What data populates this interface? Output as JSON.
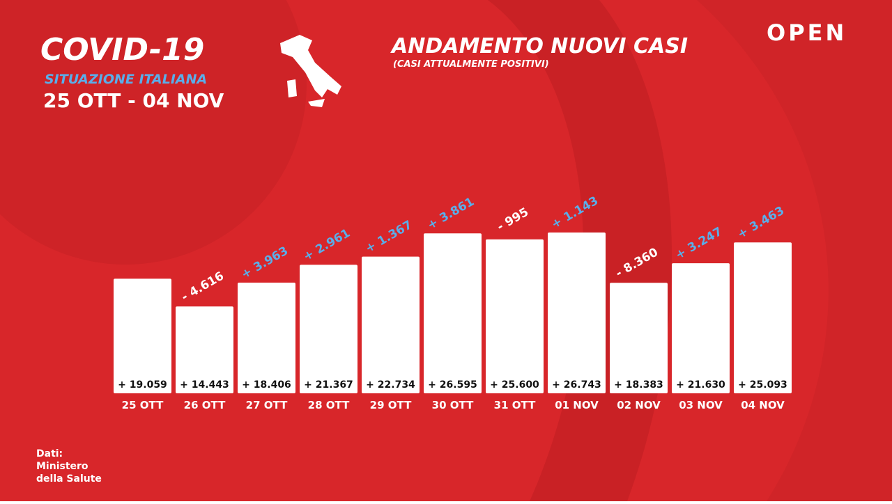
{
  "header": {
    "title": "COVID-19",
    "subtitle": "SITUAZIONE ITALIANA",
    "period": "25 OTT - 04 NOV",
    "brand": "OPEN"
  },
  "source": [
    "Dati:",
    "Ministero",
    "della Salute"
  ],
  "chart_data": {
    "type": "bar",
    "title": "ANDAMENTO NUOVI CASI",
    "subtitle": "(CASI ATTUALMENTE POSITIVI)",
    "categories": [
      "25 OTT",
      "26 OTT",
      "27 OTT",
      "28 OTT",
      "29 OTT",
      "30 OTT",
      "31 OTT",
      "01 NOV",
      "02 NOV",
      "03 NOV",
      "04 NOV"
    ],
    "values": [
      19059,
      14443,
      18406,
      21367,
      22734,
      26595,
      25600,
      26743,
      18383,
      21630,
      25093
    ],
    "value_labels": [
      "+ 19.059",
      "+ 14.443",
      "+ 18.406",
      "+ 21.367",
      "+ 22.734",
      "+ 26.595",
      "+ 25.600",
      "+ 26.743",
      "+ 18.383",
      "+ 21.630",
      "+ 25.093"
    ],
    "changes": [
      null,
      -4616,
      3963,
      2961,
      1367,
      3861,
      -995,
      1143,
      -8360,
      3247,
      3463
    ],
    "change_labels": [
      null,
      "- 4.616",
      "+ 3.963",
      "+ 2.961",
      "+ 1.367",
      "+ 3.861",
      "- 995",
      "+ 1.143",
      "- 8.360",
      "+ 3.247",
      "+ 3.463"
    ],
    "color": "#ffffff",
    "increase_color": "#5aaeea",
    "decrease_color": "#ffffff"
  }
}
